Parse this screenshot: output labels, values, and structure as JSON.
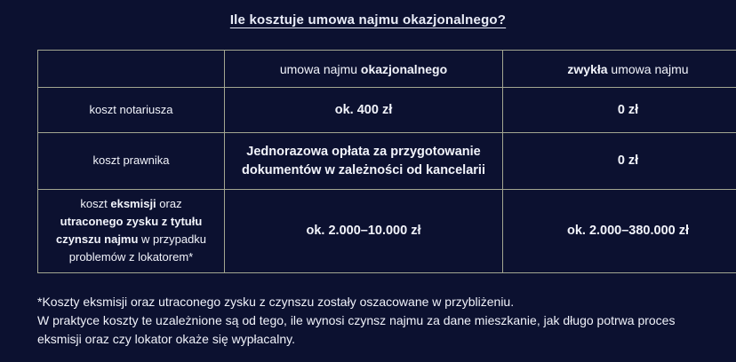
{
  "page": {
    "title": "Ile kosztuje umowa najmu okazjonalnego?"
  },
  "colors": {
    "background": "#0c1130",
    "table_border": "#a3a691",
    "text": "#f2f4fb"
  },
  "table": {
    "headers": [
      {
        "parts": [
          {
            "text": "umowa najmu ",
            "bold": false
          },
          {
            "text": "okazjonalnego",
            "bold": true
          }
        ]
      },
      {
        "parts": [
          {
            "text": "zwykła",
            "bold": true
          },
          {
            "text": " umowa najmu",
            "bold": false
          }
        ]
      }
    ],
    "rows": [
      {
        "label": "koszt notariusza",
        "occasional": "ok. 400 zł",
        "regular": "0 zł"
      },
      {
        "label": "koszt prawnika",
        "occasional": "Jednorazowa opłata za przygotowanie dokumentów w zależności od kancelarii",
        "regular": "0 zł"
      },
      {
        "label_parts": [
          {
            "text": "koszt ",
            "bold": false
          },
          {
            "text": "eksmisji",
            "bold": true
          },
          {
            "text": " oraz ",
            "bold": false
          },
          {
            "text": "utraconego zysku z tytułu czynszu najmu",
            "bold": true
          },
          {
            "text": "  w przypadku problemów z lokatorem*",
            "bold": false
          }
        ],
        "occasional": "ok. 2.000–10.000 zł",
        "regular": "ok. 2.000–380.000 zł"
      }
    ]
  },
  "footnote": {
    "line1": "*Koszty eksmisji oraz utraconego zysku z czynszu zostały oszacowane w przybliżeniu.",
    "rest": "W praktyce koszty te uzależnione są od tego, ile wynosi czynsz najmu za dane mieszkanie, jak długo potrwa proces eksmisji oraz czy lokator okaże się wypłacalny."
  }
}
